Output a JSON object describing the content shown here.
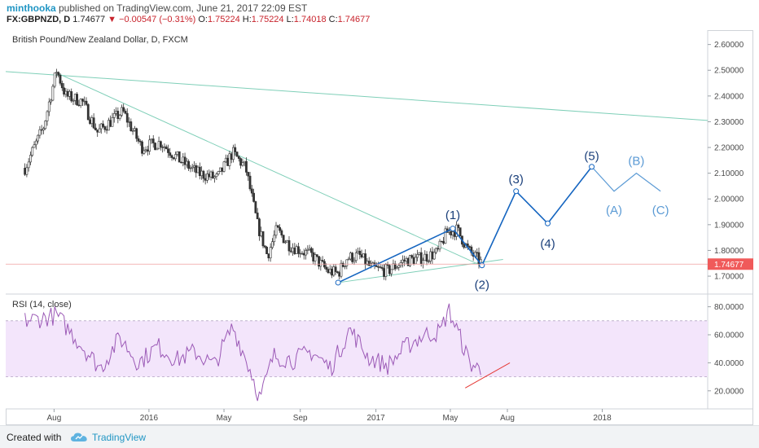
{
  "header": {
    "author": "minthooka",
    "published_text": " published on TradingView.com, June 21, 2017 22:09 EST",
    "symbol": "FX:GBPNZD, D",
    "last": "1.74677",
    "change": "−0.00547 (−0.31%)",
    "o_label": "O:",
    "o_value": "1.75224",
    "h_label": "H:",
    "h_value": "1.75224",
    "l_label": "L:",
    "l_value": "1.74018",
    "c_label": "C:",
    "c_value": "1.74677"
  },
  "footer": {
    "created_with": "Created with",
    "brand": "TradingView",
    "logo_icon": "tradingview-cloud-icon"
  },
  "colors": {
    "candle": "#333333",
    "trendline": "#7fcfb8",
    "elliott": "#1565c0",
    "projection": "#5c9bd5",
    "price_line": "#f0a0a0",
    "price_label": "#f05a5a",
    "rsi": "#9b59b6",
    "rsi_band": "#f3e5fb",
    "rsi_divergence": "#e53935"
  },
  "chart_data": [
    {
      "type": "candlestick",
      "title": "British Pound/New Zealand Dollar, D, FXCM",
      "x_ticks": [
        "Aug",
        "2016",
        "May",
        "Sep",
        "2017",
        "May",
        "Aug",
        "2018"
      ],
      "ylim": [
        1.64,
        2.64
      ],
      "y_ticks": [
        "2.60000",
        "2.50000",
        "2.40000",
        "2.30000",
        "2.20000",
        "2.10000",
        "2.00000",
        "1.90000",
        "1.80000",
        "1.70000"
      ],
      "last_price_label": "1.74677",
      "close_path": [
        [
          "2015-06",
          2.12
        ],
        [
          "2015-07",
          2.28
        ],
        [
          "2015-08-05",
          2.5
        ],
        [
          "2015-08-20",
          2.4
        ],
        [
          "2015-09-15",
          2.38
        ],
        [
          "2015-10-10",
          2.26
        ],
        [
          "2015-11-20",
          2.34
        ],
        [
          "2015-12-20",
          2.2
        ],
        [
          "2016-01-20",
          2.22
        ],
        [
          "2016-02-20",
          2.15
        ],
        [
          "2016-03-20",
          2.1
        ],
        [
          "2016-04-20",
          2.08
        ],
        [
          "2016-05-15",
          2.18
        ],
        [
          "2016-06-05",
          2.12
        ],
        [
          "2016-06-24",
          1.9
        ],
        [
          "2016-07-10",
          1.78
        ],
        [
          "2016-07-25",
          1.88
        ],
        [
          "2016-08-15",
          1.82
        ],
        [
          "2016-09-20",
          1.78
        ],
        [
          "2016-10-15",
          1.72
        ],
        [
          "2016-11-01",
          1.71
        ],
        [
          "2016-11-15",
          1.77
        ],
        [
          "2016-12-05",
          1.78
        ],
        [
          "2016-12-25",
          1.73
        ],
        [
          "2017-01-20",
          1.72
        ],
        [
          "2017-02-15",
          1.76
        ],
        [
          "2017-03-15",
          1.77
        ],
        [
          "2017-04-10",
          1.79
        ],
        [
          "2017-04-25",
          1.87
        ],
        [
          "2017-05-12",
          1.88
        ],
        [
          "2017-05-30",
          1.8
        ],
        [
          "2017-06-21",
          1.75
        ]
      ],
      "annotations": {
        "wave_labels": [
          {
            "label": "(1)",
            "date": "2017-05-05",
            "value": 1.89
          },
          {
            "label": "(2)",
            "date": "2017-06-21",
            "value": 1.74
          },
          {
            "label": "(3)",
            "date": "2017-08-15",
            "value": 2.03
          },
          {
            "label": "(4)",
            "date": "2017-10-05",
            "value": 1.9
          },
          {
            "label": "(5)",
            "date": "2017-12-15",
            "value": 2.12
          },
          {
            "label": "(A)",
            "date": "2018-01-20",
            "value": 2.03
          },
          {
            "label": "(B)",
            "date": "2018-02-25",
            "value": 2.1
          },
          {
            "label": "(C)",
            "date": "2018-04-05",
            "value": 2.03
          }
        ]
      }
    },
    {
      "type": "line",
      "title": "RSI (14, close)",
      "ylim": [
        10,
        85
      ],
      "y_ticks": [
        "80.0000",
        "60.0000",
        "40.0000",
        "20.0000"
      ],
      "band": [
        30,
        70
      ],
      "values_path": [
        [
          "2015-06",
          70
        ],
        [
          "2015-07",
          72
        ],
        [
          "2015-08-05",
          74
        ],
        [
          "2015-09",
          52
        ],
        [
          "2015-10",
          36
        ],
        [
          "2015-11",
          58
        ],
        [
          "2015-12",
          40
        ],
        [
          "2016-01",
          52
        ],
        [
          "2016-02",
          42
        ],
        [
          "2016-03",
          48
        ],
        [
          "2016-04",
          38
        ],
        [
          "2016-05",
          66
        ],
        [
          "2016-06",
          32
        ],
        [
          "2016-06-28",
          14
        ],
        [
          "2016-07-20",
          45
        ],
        [
          "2016-08-20",
          42
        ],
        [
          "2016-09-20",
          48
        ],
        [
          "2016-10-20",
          36
        ],
        [
          "2016-11-20",
          64
        ],
        [
          "2016-12-20",
          44
        ],
        [
          "2017-01-20",
          38
        ],
        [
          "2017-02-20",
          52
        ],
        [
          "2017-03-20",
          60
        ],
        [
          "2017-04-15",
          62
        ],
        [
          "2017-04-28",
          78
        ],
        [
          "2017-05-15",
          60
        ],
        [
          "2017-06-01",
          40
        ],
        [
          "2017-06-21",
          34
        ]
      ]
    }
  ]
}
